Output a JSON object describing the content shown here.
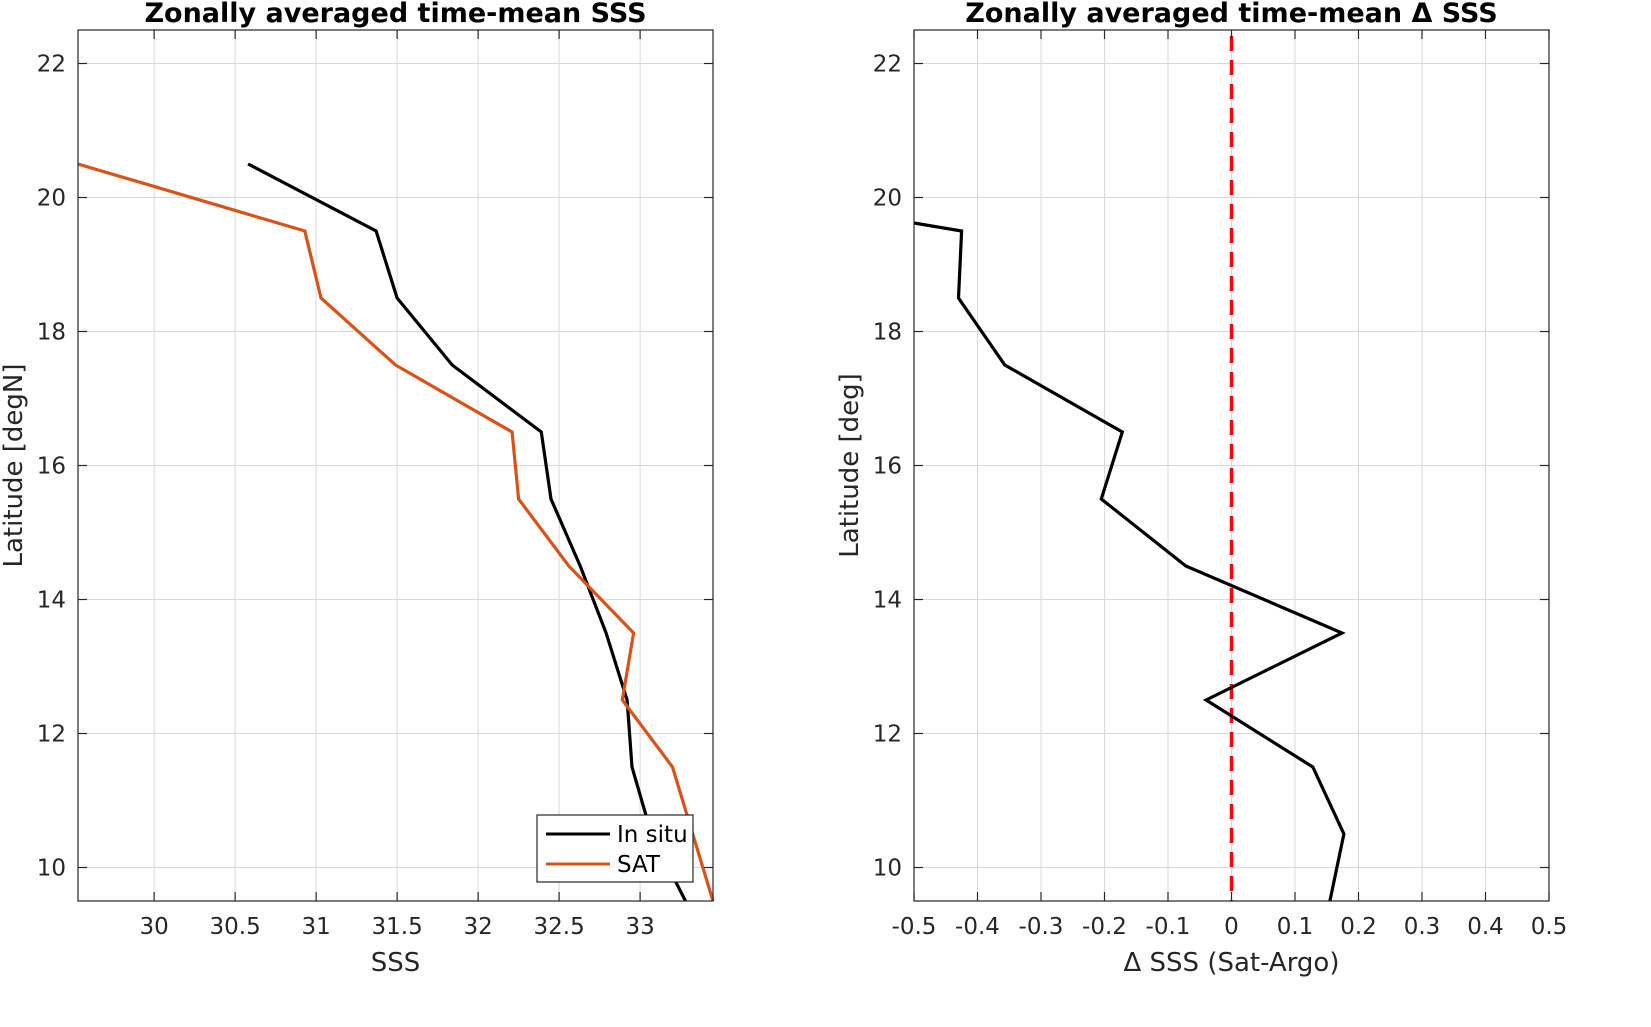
{
  "chart_data": [
    {
      "type": "line",
      "title": "Zonally averaged time-mean SSS",
      "xlabel": "SSS",
      "ylabel": "Latitude [degN]",
      "xlim": [
        29.53,
        33.45
      ],
      "ylim": [
        9.5,
        22.5
      ],
      "xticks": [
        30,
        30.5,
        31,
        31.5,
        32,
        32.5,
        33
      ],
      "xtick_labels": [
        "30",
        "30.5",
        "31",
        "31.5",
        "32",
        "32.5",
        "33"
      ],
      "yticks": [
        10,
        12,
        14,
        16,
        18,
        20,
        22
      ],
      "ytick_labels": [
        "10",
        "12",
        "14",
        "16",
        "18",
        "20",
        "22"
      ],
      "grid": true,
      "legend_position": "bottom-right",
      "series": [
        {
          "name": "In situ",
          "color": "#000000",
          "x": [
            30.58,
            31.37,
            31.5,
            31.84,
            32.39,
            32.45,
            32.63,
            32.79,
            32.92,
            32.95,
            33.07,
            33.28
          ],
          "y": [
            20.5,
            19.5,
            18.5,
            17.5,
            16.5,
            15.5,
            14.5,
            13.5,
            12.5,
            11.5,
            10.5,
            9.5
          ]
        },
        {
          "name": "SAT",
          "color": "#D95319",
          "x": [
            29.53,
            30.93,
            31.03,
            31.49,
            32.21,
            32.25,
            32.56,
            32.96,
            32.89,
            33.2,
            33.45
          ],
          "y": [
            20.5,
            19.5,
            18.5,
            17.5,
            16.5,
            15.5,
            14.5,
            13.5,
            12.5,
            11.5,
            9.5
          ]
        }
      ]
    },
    {
      "type": "line",
      "title": "Zonally averaged time-mean Δ SSS",
      "xlabel": "Δ SSS (Sat-Argo)",
      "ylabel": "Latitude [deg]",
      "xlim": [
        -0.5,
        0.5
      ],
      "ylim": [
        9.5,
        22.5
      ],
      "xticks": [
        -0.5,
        -0.4,
        -0.3,
        -0.2,
        -0.1,
        0,
        0.1,
        0.2,
        0.3,
        0.4,
        0.5
      ],
      "xtick_labels": [
        "-0.5",
        "-0.4",
        "-0.3",
        "-0.2",
        "-0.1",
        "0",
        "0.1",
        "0.2",
        "0.3",
        "0.4",
        "0.5"
      ],
      "yticks": [
        10,
        12,
        14,
        16,
        18,
        20,
        22
      ],
      "ytick_labels": [
        "10",
        "12",
        "14",
        "16",
        "18",
        "20",
        "22"
      ],
      "grid": true,
      "series": [
        {
          "color": "#000000",
          "x": [
            -0.5,
            -0.425,
            -0.43,
            -0.357,
            -0.172,
            -0.205,
            -0.072,
            0.174,
            -0.04,
            0.128,
            0.177,
            0.155
          ],
          "y": [
            19.62,
            19.5,
            18.5,
            17.5,
            16.5,
            15.5,
            14.5,
            13.5,
            12.5,
            11.5,
            10.5,
            9.5
          ]
        }
      ],
      "reference_line": {
        "x": 0,
        "color": "#FF0000",
        "style": "dashed"
      }
    }
  ]
}
